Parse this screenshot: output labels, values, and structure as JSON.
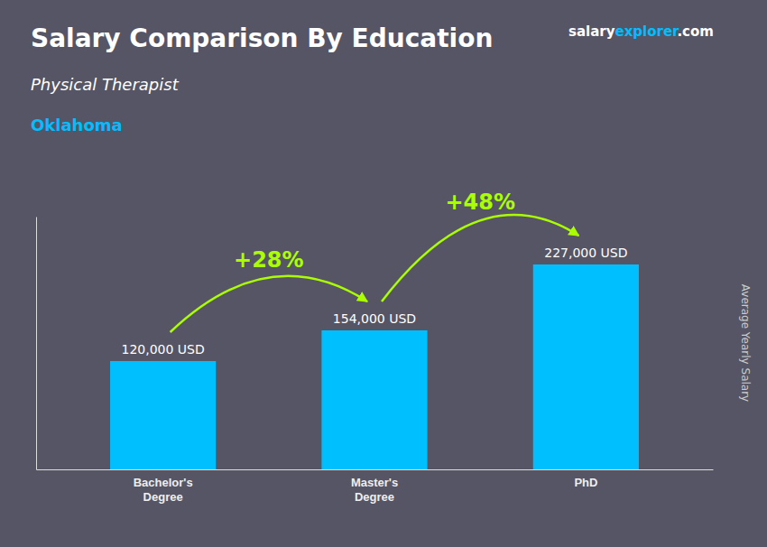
{
  "chart_data": {
    "type": "bar",
    "title": "Salary Comparison By Education",
    "subtitle": "Physical Therapist",
    "location": {
      "text": "Oklahoma",
      "color": "#00BFFF"
    },
    "ylabel": "Average Yearly Salary",
    "categories": [
      "Bachelor's\nDegree",
      "Master's\nDegree",
      "PhD"
    ],
    "values": [
      120000,
      154000,
      227000
    ],
    "value_labels": [
      "120,000 USD",
      "154,000 USD",
      "227,000 USD"
    ],
    "data_labels": true,
    "color": "#00BFFF",
    "ylim": [
      0,
      280000
    ],
    "tick_labels": "x",
    "grid": false,
    "annotations": [
      {
        "text": "+28%",
        "color": "#AAFF00"
      },
      {
        "text": "+48%",
        "color": "#AAFF00"
      }
    ],
    "brand": [
      {
        "text": "salary",
        "color": "#ffffff"
      },
      {
        "text": "explorer",
        "color": "#00BFFF"
      },
      {
        "text": ".com",
        "color": "#ffffff"
      }
    ]
  }
}
